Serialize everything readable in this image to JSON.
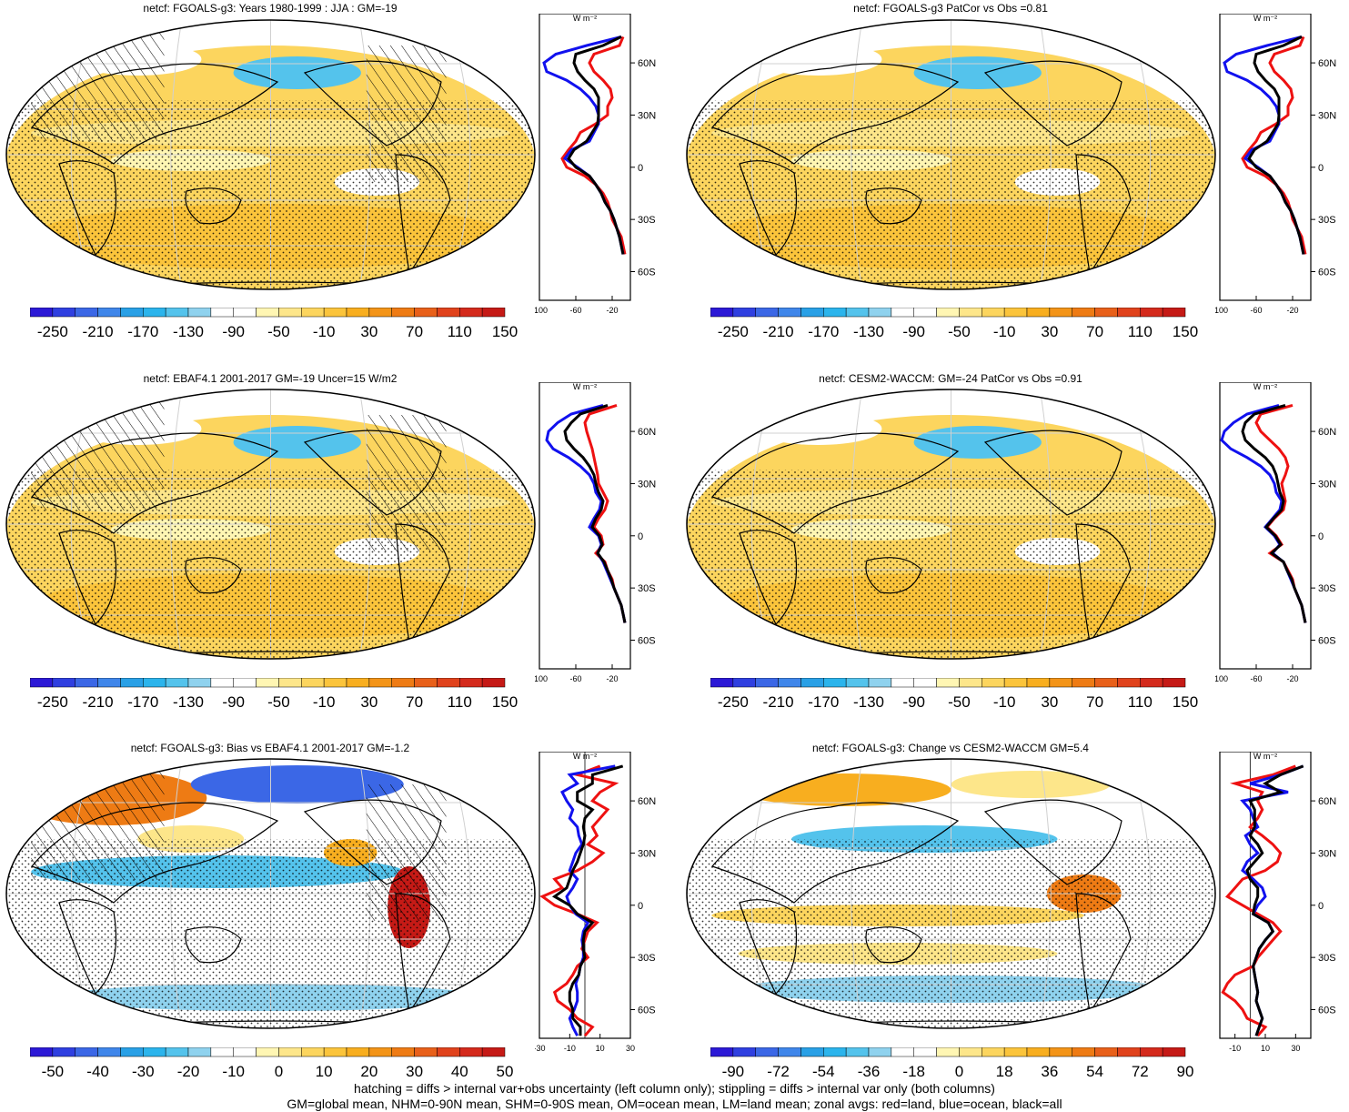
{
  "palettes": {
    "main": [
      "#2c19d6",
      "#2f3fe0",
      "#3b67e6",
      "#3f86ea",
      "#29a0e6",
      "#2bb4ec",
      "#54c3ec",
      "#8fd2ee",
      "#ffffff",
      "#ffffff",
      "#fff6b3",
      "#fde68a",
      "#fcd55e",
      "#fbc43b",
      "#f8ae1f",
      "#f39418",
      "#ee7b14",
      "#e8601a",
      "#e0421c",
      "#d42a1c",
      "#c51a16"
    ],
    "bias": [
      "#2c19d6",
      "#2f3fe0",
      "#3b67e6",
      "#3f86ea",
      "#29a0e6",
      "#2bb4ec",
      "#54c3ec",
      "#8fd2ee",
      "#ffffff",
      "#ffffff",
      "#fff6b3",
      "#fde68a",
      "#fcd55e",
      "#fbc43b",
      "#f8ae1f",
      "#f39418",
      "#ee7b14",
      "#e8601a",
      "#e0421c",
      "#d42a1c",
      "#c51a16"
    ],
    "line_colors": {
      "land": "#ee1111",
      "ocean": "#1111ee",
      "all": "#000000"
    }
  },
  "unit_label": "W m⁻²",
  "lat_labels": [
    "60N",
    "30N",
    "0",
    "30S",
    "60S"
  ],
  "panels": [
    {
      "title": "netcf: FGOALS-g3: Years 1980-1999 : JJA : GM=-19",
      "colorbar_labels": [
        "-250",
        "-210",
        "-170",
        "-130",
        "-90",
        "-50",
        "-10",
        "30",
        "70",
        "110",
        "150"
      ],
      "zonal_x_ticks": [
        "-100",
        "-60",
        "-20"
      ],
      "hatched": true
    },
    {
      "title": "netcf: FGOALS-g3 PatCor vs Obs =0.81",
      "colorbar_labels": [
        "-250",
        "-210",
        "-170",
        "-130",
        "-90",
        "-50",
        "-10",
        "30",
        "70",
        "110",
        "150"
      ],
      "zonal_x_ticks": [
        "-100",
        "-60",
        "-20"
      ],
      "hatched": false
    },
    {
      "title": "netcf: EBAF4.1 2001-2017 GM=-19 Uncer=15 W/m2",
      "colorbar_labels": [
        "-250",
        "-210",
        "-170",
        "-130",
        "-90",
        "-50",
        "-10",
        "30",
        "70",
        "110",
        "150"
      ],
      "zonal_x_ticks": [
        "-100",
        "-60",
        "-20"
      ],
      "hatched": true
    },
    {
      "title": "netcf: CESM2-WACCM: GM=-24 PatCor vs Obs =0.91",
      "colorbar_labels": [
        "-250",
        "-210",
        "-170",
        "-130",
        "-90",
        "-50",
        "-10",
        "30",
        "70",
        "110",
        "150"
      ],
      "zonal_x_ticks": [
        "-100",
        "-60",
        "-20"
      ],
      "hatched": false
    },
    {
      "title": "netcf: FGOALS-g3: Bias vs EBAF4.1 2001-2017 GM=-1.2",
      "colorbar_labels": [
        "-50",
        "-40",
        "-30",
        "-20",
        "-10",
        "0",
        "10",
        "20",
        "30",
        "40",
        "50"
      ],
      "zonal_x_ticks": [
        "-30",
        "-10",
        "10",
        "30"
      ],
      "hatched": true
    },
    {
      "title": "netcf: FGOALS-g3: Change vs CESM2-WACCM GM=5.4",
      "colorbar_labels": [
        "-90",
        "-72",
        "-54",
        "-36",
        "-18",
        "0",
        "18",
        "36",
        "54",
        "72",
        "90"
      ],
      "zonal_x_ticks": [
        "-10",
        "10",
        "30"
      ],
      "hatched": false
    }
  ],
  "footer": {
    "line1": "hatching = diffs > internal var+obs uncertainty (left column only); stippling = diffs > internal var only (both columns)",
    "line2": "GM=global mean, NHM=0-90N mean, SHM=0-90S mean, OM=ocean mean, LM=land mean; zonal avgs: red=land, blue=ocean, black=all"
  },
  "chart_data": [
    {
      "type": "heatmap",
      "title": "netcf: FGOALS-g3: Years 1980-1999 : JJA : GM=-19",
      "colorbar": [
        -250,
        -210,
        -170,
        -130,
        -90,
        -50,
        -10,
        30,
        70,
        110,
        150
      ],
      "zonal_mean": {
        "y_lat": [
          75,
          70,
          65,
          60,
          55,
          50,
          45,
          40,
          35,
          30,
          25,
          20,
          15,
          10,
          5,
          0,
          -5,
          -10,
          -15,
          -20,
          -25,
          -30,
          -35,
          -40,
          -45,
          -50
        ],
        "xlim": [
          -100,
          0
        ],
        "series": [
          {
            "name": "land",
            "x": [
              -8,
              -12,
              -40,
              -45,
              -40,
              -30,
              -22,
              -20,
              -25,
              -25,
              -38,
              -55,
              -60,
              -68,
              -75,
              -70,
              -50,
              -38,
              -30,
              -25,
              -22,
              -20,
              -15,
              -10,
              -8,
              -6
            ]
          },
          {
            "name": "ocean",
            "x": [
              -10,
              -48,
              -82,
              -95,
              -92,
              -70,
              -55,
              -45,
              -38,
              -35,
              -35,
              -40,
              -45,
              -65,
              -72,
              -58,
              -45,
              -38,
              -32,
              -28,
              -22,
              -18,
              -15,
              -12,
              -10,
              -8
            ]
          },
          {
            "name": "all",
            "x": [
              -10,
              -30,
              -60,
              -62,
              -58,
              -50,
              -40,
              -35,
              -35,
              -35,
              -36,
              -42,
              -48,
              -62,
              -68,
              -60,
              -45,
              -38,
              -32,
              -28,
              -22,
              -18,
              -15,
              -12,
              -10,
              -8
            ]
          }
        ]
      }
    },
    {
      "type": "heatmap",
      "title": "netcf: FGOALS-g3 PatCor vs Obs =0.81",
      "colorbar": [
        -250,
        -210,
        -170,
        -130,
        -90,
        -50,
        -10,
        30,
        70,
        110,
        150
      ],
      "zonal_mean": {
        "y_lat": [
          75,
          70,
          65,
          60,
          55,
          50,
          45,
          40,
          35,
          30,
          25,
          20,
          15,
          10,
          5,
          0,
          -5,
          -10,
          -15,
          -20,
          -25,
          -30,
          -35,
          -40,
          -45,
          -50
        ],
        "xlim": [
          -100,
          0
        ],
        "series": [
          {
            "name": "land",
            "x": [
              -8,
              -12,
              -40,
              -45,
              -40,
              -30,
              -22,
              -20,
              -25,
              -25,
              -38,
              -55,
              -60,
              -68,
              -75,
              -70,
              -50,
              -38,
              -30,
              -25,
              -22,
              -20,
              -15,
              -10,
              -8,
              -6
            ]
          },
          {
            "name": "ocean",
            "x": [
              -10,
              -48,
              -82,
              -95,
              -92,
              -70,
              -55,
              -45,
              -38,
              -35,
              -35,
              -40,
              -45,
              -65,
              -72,
              -58,
              -45,
              -38,
              -32,
              -28,
              -22,
              -18,
              -15,
              -12,
              -10,
              -8
            ]
          },
          {
            "name": "all",
            "x": [
              -10,
              -30,
              -60,
              -62,
              -58,
              -50,
              -40,
              -35,
              -35,
              -35,
              -36,
              -42,
              -48,
              -62,
              -68,
              -60,
              -45,
              -38,
              -32,
              -28,
              -22,
              -18,
              -15,
              -12,
              -10,
              -8
            ]
          }
        ]
      }
    },
    {
      "type": "heatmap",
      "title": "netcf: EBAF4.1 2001-2017 GM=-19 Uncer=15 W/m2",
      "colorbar": [
        -250,
        -210,
        -170,
        -130,
        -90,
        -50,
        -10,
        30,
        70,
        110,
        150
      ],
      "zonal_mean": {
        "y_lat": [
          75,
          70,
          65,
          60,
          55,
          50,
          45,
          40,
          35,
          30,
          25,
          20,
          15,
          10,
          5,
          0,
          -5,
          -10,
          -15,
          -20,
          -25,
          -30,
          -35,
          -40,
          -45,
          -50
        ],
        "xlim": [
          -100,
          0
        ],
        "series": [
          {
            "name": "land",
            "x": [
              -15,
              -45,
              -50,
              -48,
              -45,
              -42,
              -40,
              -38,
              -36,
              -35,
              -30,
              -25,
              -28,
              -35,
              -40,
              -32,
              -30,
              -38,
              -28,
              -25,
              -20,
              -18,
              -14,
              -10,
              -8,
              -6
            ]
          },
          {
            "name": "ocean",
            "x": [
              -30,
              -65,
              -80,
              -90,
              -92,
              -85,
              -68,
              -55,
              -45,
              -40,
              -38,
              -32,
              -34,
              -40,
              -45,
              -35,
              -32,
              -36,
              -30,
              -26,
              -22,
              -18,
              -14,
              -10,
              -8,
              -6
            ]
          },
          {
            "name": "all",
            "x": [
              -25,
              -55,
              -65,
              -72,
              -70,
              -62,
              -52,
              -45,
              -40,
              -38,
              -35,
              -30,
              -32,
              -38,
              -42,
              -34,
              -31,
              -36,
              -29,
              -25,
              -21,
              -18,
              -14,
              -10,
              -8,
              -6
            ]
          }
        ]
      }
    },
    {
      "type": "heatmap",
      "title": "netcf: CESM2-WACCM: GM=-24 PatCor vs Obs =0.91",
      "colorbar": [
        -250,
        -210,
        -170,
        -130,
        -90,
        -50,
        -10,
        30,
        70,
        110,
        150
      ],
      "zonal_mean": {
        "y_lat": [
          75,
          70,
          65,
          60,
          55,
          50,
          45,
          40,
          35,
          30,
          25,
          20,
          15,
          10,
          5,
          0,
          -5,
          -10,
          -15,
          -20,
          -25,
          -30,
          -35,
          -40,
          -45,
          -50
        ],
        "xlim": [
          -100,
          0
        ],
        "series": [
          {
            "name": "land",
            "x": [
              -20,
              -55,
              -60,
              -55,
              -45,
              -35,
              -28,
              -25,
              -28,
              -32,
              -30,
              -28,
              -30,
              -40,
              -48,
              -38,
              -32,
              -45,
              -30,
              -25,
              -20,
              -18,
              -14,
              -10,
              -8,
              -6
            ]
          },
          {
            "name": "ocean",
            "x": [
              -35,
              -70,
              -85,
              -95,
              -98,
              -88,
              -70,
              -55,
              -45,
              -40,
              -38,
              -32,
              -34,
              -42,
              -50,
              -40,
              -34,
              -42,
              -30,
              -26,
              -22,
              -18,
              -14,
              -10,
              -8,
              -6
            ]
          },
          {
            "name": "all",
            "x": [
              -28,
              -62,
              -72,
              -75,
              -72,
              -62,
              -50,
              -42,
              -38,
              -36,
              -34,
              -30,
              -32,
              -41,
              -49,
              -39,
              -33,
              -43,
              -30,
              -26,
              -21,
              -18,
              -14,
              -10,
              -8,
              -6
            ]
          }
        ]
      }
    },
    {
      "type": "heatmap",
      "title": "netcf: FGOALS-g3: Bias vs EBAF4.1 2001-2017 GM=-1.2",
      "colorbar": [
        -50,
        -40,
        -30,
        -20,
        -10,
        0,
        10,
        20,
        30,
        40,
        50
      ],
      "zonal_mean": {
        "y_lat": [
          80,
          75,
          70,
          65,
          60,
          55,
          50,
          45,
          40,
          35,
          30,
          25,
          20,
          15,
          10,
          5,
          0,
          -5,
          -10,
          -15,
          -20,
          -25,
          -30,
          -35,
          -40,
          -45,
          -50,
          -55,
          -60,
          -65,
          -70,
          -75
        ],
        "xlim": [
          -30,
          30
        ],
        "series": [
          {
            "name": "land",
            "x": [
              10,
              -5,
              20,
              10,
              5,
              15,
              10,
              5,
              8,
              2,
              12,
              5,
              -5,
              -20,
              -15,
              -28,
              -20,
              -5,
              8,
              2,
              0,
              -2,
              2,
              -5,
              -8,
              -12,
              -20,
              -18,
              -10,
              -5,
              5,
              0
            ]
          },
          {
            "name": "ocean",
            "x": [
              20,
              -10,
              -5,
              -15,
              -12,
              -8,
              -10,
              -5,
              -4,
              -2,
              -6,
              -8,
              -10,
              -5,
              -8,
              -12,
              -10,
              -6,
              2,
              -1,
              -2,
              -1,
              -1,
              -3,
              -4,
              -6,
              -5,
              -5,
              -7,
              -10,
              -8,
              -5
            ]
          },
          {
            "name": "all",
            "x": [
              25,
              5,
              5,
              -5,
              -5,
              5,
              0,
              -1,
              0,
              -1,
              -3,
              -5,
              -8,
              -10,
              -12,
              -20,
              -10,
              -5,
              5,
              0,
              -1,
              -1,
              0,
              -3,
              -4,
              -8,
              -10,
              -10,
              -8,
              -8,
              -3,
              -3
            ]
          }
        ]
      }
    },
    {
      "type": "heatmap",
      "title": "netcf: FGOALS-g3: Change vs CESM2-WACCM GM=5.4",
      "colorbar": [
        -90,
        -72,
        -54,
        -36,
        -18,
        0,
        18,
        36,
        54,
        72,
        90
      ],
      "zonal_mean": {
        "y_lat": [
          80,
          75,
          70,
          65,
          60,
          55,
          50,
          45,
          40,
          35,
          30,
          25,
          20,
          15,
          10,
          5,
          0,
          -5,
          -10,
          -15,
          -20,
          -25,
          -30,
          -35,
          -40,
          -45,
          -50,
          -55,
          -60,
          -65,
          -70,
          -75
        ],
        "xlim": [
          -20,
          40
        ],
        "series": [
          {
            "name": "land",
            "x": [
              30,
              15,
              -10,
              8,
              5,
              8,
              5,
              0,
              8,
              15,
              20,
              18,
              10,
              -5,
              -10,
              -15,
              -5,
              5,
              15,
              20,
              15,
              10,
              5,
              2,
              -10,
              -15,
              -18,
              -10,
              -5,
              -2,
              10,
              5
            ]
          },
          {
            "name": "ocean",
            "x": [
              35,
              20,
              0,
              25,
              -5,
              0,
              2,
              5,
              -3,
              0,
              5,
              -2,
              -5,
              2,
              8,
              10,
              5,
              2,
              12,
              15,
              10,
              6,
              4,
              2,
              3,
              4,
              5,
              4,
              6,
              8,
              6,
              4
            ]
          },
          {
            "name": "all",
            "x": [
              35,
              20,
              10,
              20,
              0,
              3,
              3,
              3,
              0,
              5,
              8,
              3,
              -2,
              0,
              5,
              5,
              3,
              2,
              12,
              15,
              10,
              6,
              4,
              2,
              3,
              4,
              5,
              4,
              6,
              8,
              6,
              4
            ]
          }
        ]
      }
    }
  ]
}
